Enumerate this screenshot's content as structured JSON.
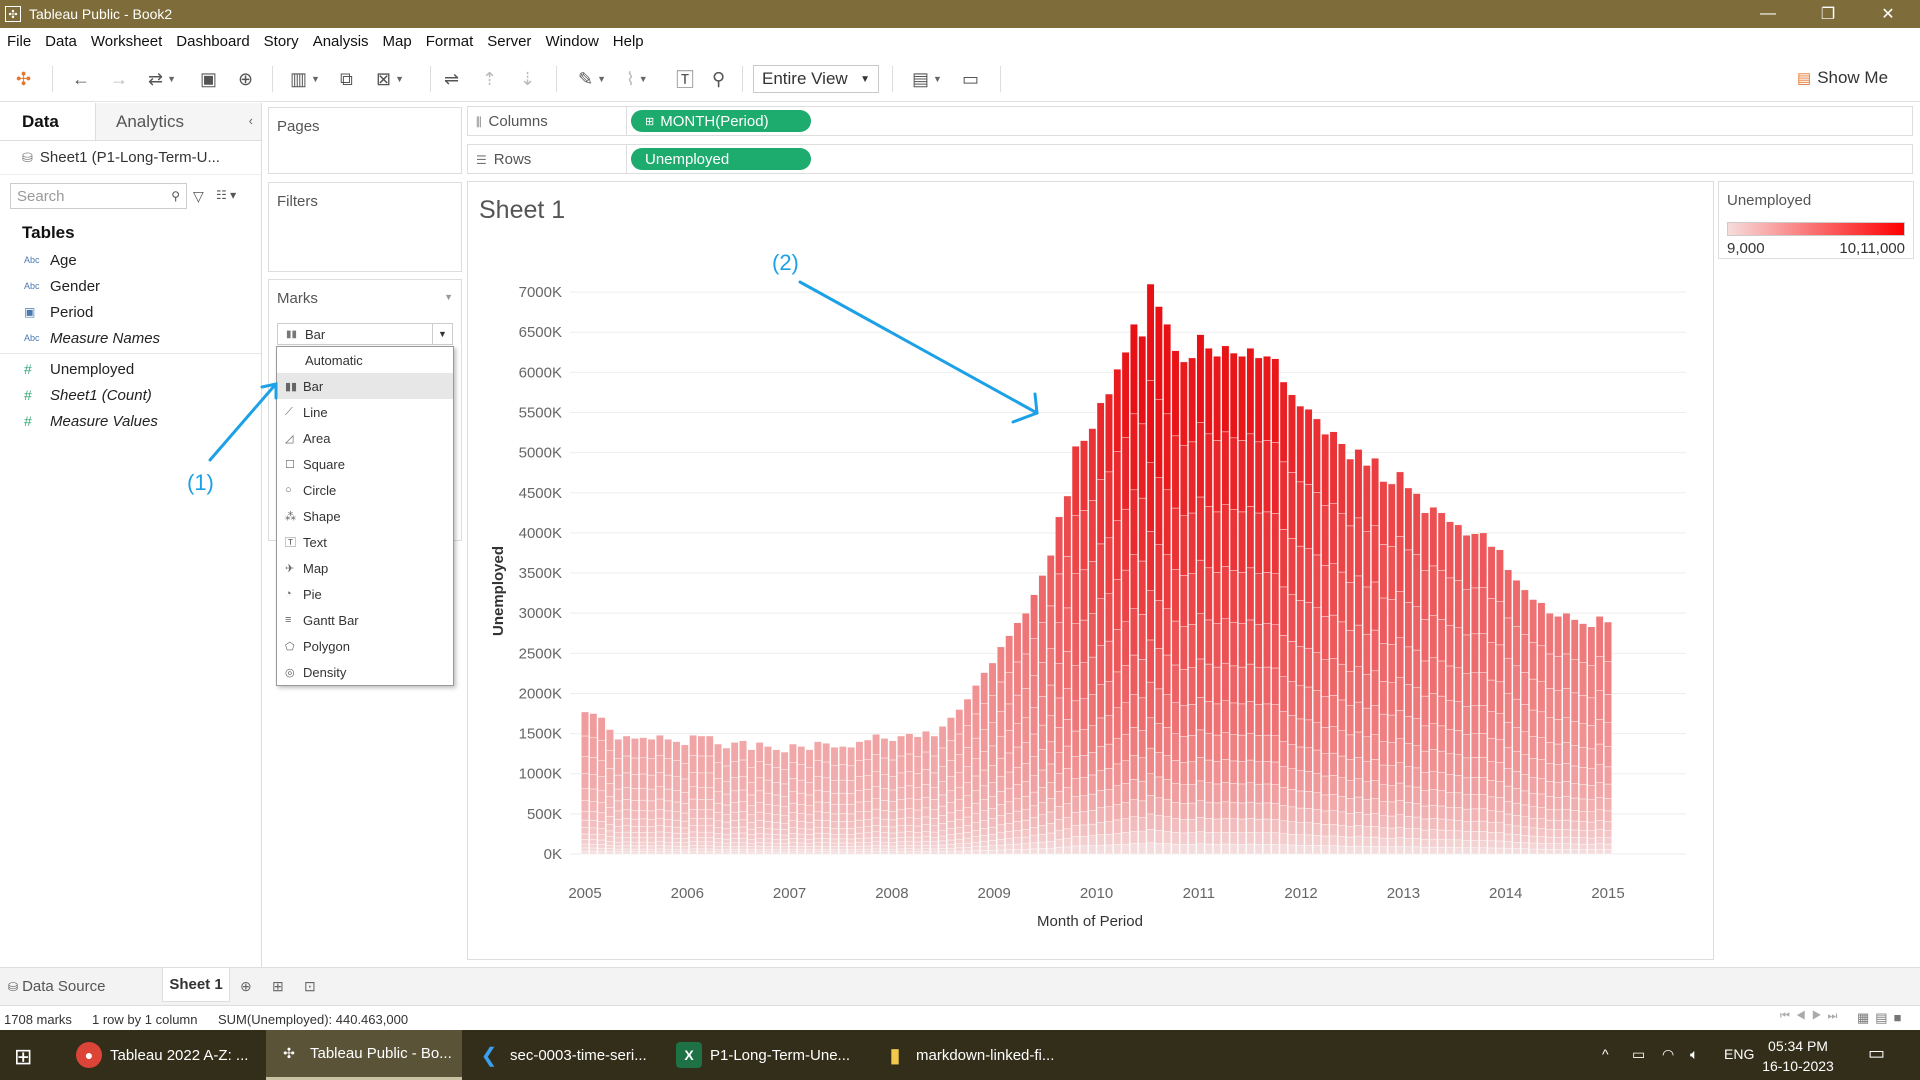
{
  "window": {
    "title": "Tableau Public - Book2"
  },
  "menu": [
    "File",
    "Data",
    "Worksheet",
    "Dashboard",
    "Story",
    "Analysis",
    "Map",
    "Format",
    "Server",
    "Window",
    "Help"
  ],
  "toolbar": {
    "fit": "Entire View",
    "show_me": "Show Me"
  },
  "data_pane": {
    "tab_data": "Data",
    "tab_analytics": "Analytics",
    "datasource": "Sheet1 (P1-Long-Term-U...",
    "search_placeholder": "Search",
    "tables_heading": "Tables",
    "dimensions": [
      {
        "type": "Abc",
        "name": "Age"
      },
      {
        "type": "Abc",
        "name": "Gender"
      },
      {
        "type": "date",
        "name": "Period"
      },
      {
        "type": "Abc",
        "name": "Measure Names"
      }
    ],
    "measures": [
      {
        "type": "#",
        "name": "Unemployed"
      },
      {
        "type": "#",
        "name": "Sheet1 (Count)"
      },
      {
        "type": "#",
        "name": "Measure Values"
      }
    ]
  },
  "cards": {
    "pages": "Pages",
    "filters": "Filters",
    "marks": "Marks"
  },
  "marks": {
    "selected": "Bar",
    "options": [
      "Automatic",
      "Bar",
      "Line",
      "Area",
      "Square",
      "Circle",
      "Shape",
      "Text",
      "Map",
      "Pie",
      "Gantt Bar",
      "Polygon",
      "Density"
    ]
  },
  "shelves": {
    "columns_label": "Columns",
    "columns_pill": "MONTH(Period)",
    "rows_label": "Rows",
    "rows_pill": "Unemployed"
  },
  "sheet": {
    "title": "Sheet 1"
  },
  "legend": {
    "title": "Unemployed",
    "min": "9,000",
    "max": "10,11,000",
    "color_low": "#f6dcdc",
    "color_high": "#ff0000"
  },
  "annotations": {
    "a1": "(1)",
    "a2": "(2)"
  },
  "chart_data": {
    "type": "bar",
    "stacked": true,
    "xlabel": "Month of Period",
    "ylabel": "Unemployed",
    "x_ticks": [
      "2005",
      "2006",
      "2007",
      "2008",
      "2009",
      "2010",
      "2011",
      "2012",
      "2013",
      "2014",
      "2015"
    ],
    "y_ticks": [
      "0K",
      "500K",
      "1000K",
      "1500K",
      "2000K",
      "2500K",
      "3000K",
      "3500K",
      "4000K",
      "4500K",
      "5000K",
      "5500K",
      "6000K",
      "6500K",
      "7000K"
    ],
    "ylim": [
      0,
      7300000
    ],
    "x_range": [
      "2005-01",
      "2015-01"
    ],
    "monthly_totals_k": [
      1770,
      1750,
      1700,
      1550,
      1430,
      1470,
      1440,
      1450,
      1430,
      1480,
      1430,
      1400,
      1360,
      1480,
      1470,
      1470,
      1370,
      1320,
      1390,
      1410,
      1300,
      1390,
      1340,
      1300,
      1270,
      1370,
      1340,
      1300,
      1400,
      1380,
      1330,
      1340,
      1330,
      1400,
      1420,
      1490,
      1440,
      1410,
      1470,
      1500,
      1460,
      1530,
      1470,
      1590,
      1700,
      1800,
      1930,
      2100,
      2260,
      2380,
      2580,
      2720,
      2880,
      3000,
      3230,
      3470,
      3720,
      4200,
      4460,
      5080,
      5150,
      5300,
      5620,
      5730,
      6040,
      6250,
      6600,
      6450,
      7100,
      6820,
      6600,
      6270,
      6130,
      6180,
      6470,
      6300,
      6200,
      6330,
      6240,
      6200,
      6300,
      6180,
      6200,
      6170,
      5880,
      5720,
      5580,
      5540,
      5420,
      5230,
      5260,
      5110,
      4920,
      5040,
      4840,
      4930,
      4640,
      4610,
      4760,
      4560,
      4490,
      4250,
      4320,
      4250,
      4140,
      4100,
      3970,
      3990,
      4000,
      3830,
      3790,
      3540,
      3410,
      3290,
      3170,
      3130,
      3000,
      2960,
      3000,
      2920,
      2870,
      2830,
      2960,
      2890
    ]
  },
  "tabs": {
    "datasource": "Data Source",
    "sheet": "Sheet 1"
  },
  "status": {
    "marks": "1708 marks",
    "dims": "1 row by 1 column",
    "sum": "SUM(Unemployed): 440.463,000"
  },
  "taskbar": {
    "items": [
      "Tableau 2022 A-Z: ...",
      "Tableau Public - Bo...",
      "sec-0003-time-seri...",
      "P1-Long-Term-Une...",
      "markdown-linked-fi..."
    ],
    "lang": "ENG",
    "time": "05:34 PM",
    "date": "16-10-2023"
  }
}
